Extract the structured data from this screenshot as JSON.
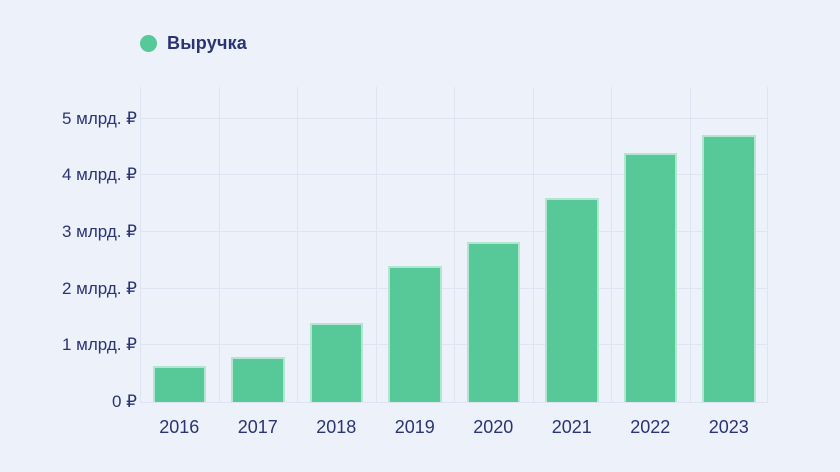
{
  "chart_data": {
    "type": "bar",
    "categories": [
      "2016",
      "2017",
      "2018",
      "2019",
      "2020",
      "2021",
      "2022",
      "2023"
    ],
    "series": [
      {
        "name": "Выручка",
        "values": [
          0.64,
          0.8,
          1.4,
          2.4,
          2.82,
          3.6,
          4.4,
          4.72
        ]
      }
    ],
    "title": "",
    "xlabel": "",
    "ylabel": "",
    "unit": "млрд. ₽",
    "ylim": [
      0,
      5.56
    ],
    "yticks": [
      {
        "value": 0,
        "label": "0 ₽"
      },
      {
        "value": 1,
        "label": "1 млрд. ₽"
      },
      {
        "value": 2,
        "label": "2 млрд. ₽"
      },
      {
        "value": 3,
        "label": "3 млрд. ₽"
      },
      {
        "value": 4,
        "label": "4 млрд. ₽"
      },
      {
        "value": 5,
        "label": "5 млрд. ₽"
      }
    ],
    "grid": true,
    "legend_position": "top-left",
    "colors": {
      "bar": "#57c897",
      "background": "#edf1fa",
      "gridline": "#dee4f2",
      "text": "#2a3473"
    }
  }
}
